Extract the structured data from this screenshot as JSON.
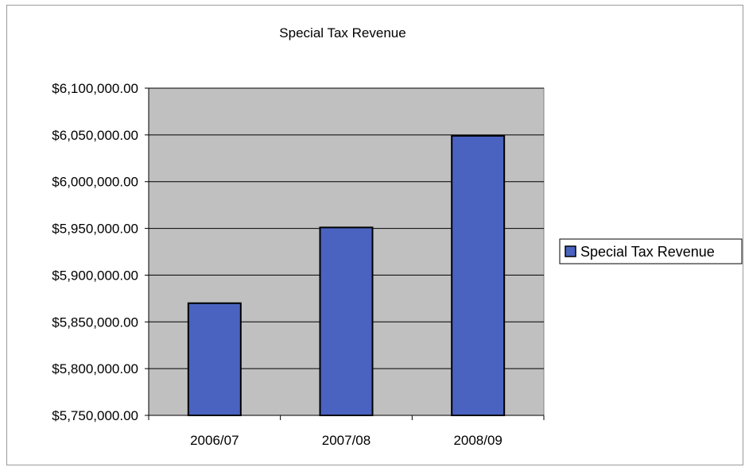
{
  "chart_data": {
    "type": "bar",
    "title": "Special Tax Revenue",
    "categories": [
      "2006/07",
      "2007/08",
      "2008/09"
    ],
    "series": [
      {
        "name": "Special Tax Revenue",
        "values": [
          5870000,
          5951000,
          6049000
        ]
      }
    ],
    "ylim": [
      5750000,
      6100000
    ],
    "yticks": [
      5750000,
      5800000,
      5850000,
      5900000,
      5950000,
      6000000,
      6050000,
      6100000
    ],
    "ytick_labels": [
      "$5,750,000.00",
      "$5,800,000.00",
      "$5,850,000.00",
      "$5,900,000.00",
      "$5,950,000.00",
      "$6,000,000.00",
      "$6,050,000.00",
      "$6,100,000.00"
    ],
    "xlabel": "",
    "ylabel": "",
    "grid": true,
    "legend_position": "right",
    "colors": {
      "bar": "#4a63c0",
      "bar_border": "#000000",
      "plot_background": "#c0c0c0",
      "grid": "#000000"
    }
  }
}
